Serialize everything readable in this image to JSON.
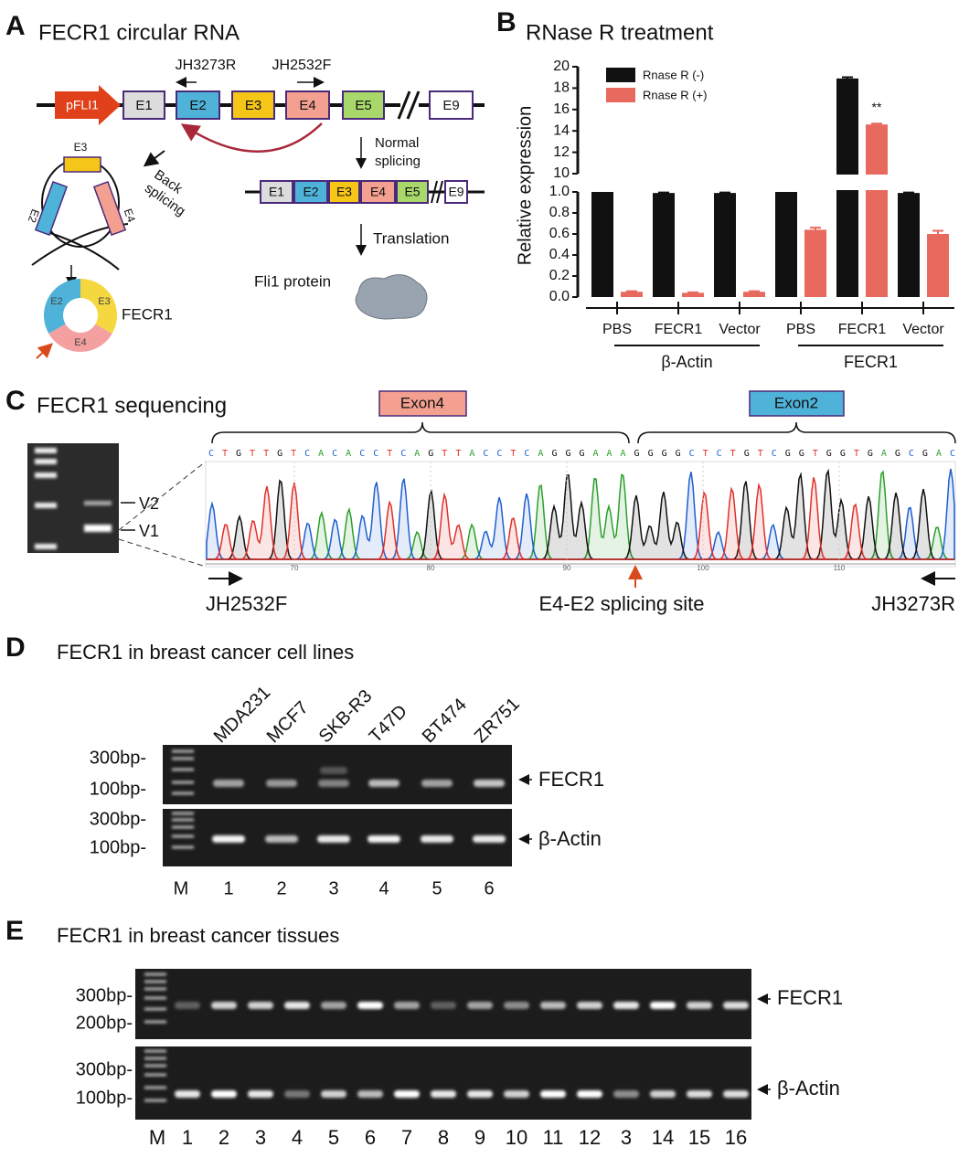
{
  "panel_a": {
    "letter": "A",
    "title": "FECR1 circular RNA",
    "promoter": "pFLI1",
    "exons": [
      "E1",
      "E2",
      "E3",
      "E4",
      "E5",
      "E9"
    ],
    "primers": [
      "JH3273R",
      "JH2532F"
    ],
    "back_splicing": [
      "Back",
      "splicing"
    ],
    "circle_exons": [
      "E3",
      "E2",
      "E4"
    ],
    "ring_exons": [
      "E2",
      "E3",
      "E4"
    ],
    "circ_name": "FECR1",
    "normal_splicing": [
      "Normal",
      "splicing"
    ],
    "mrna_exons": [
      "E1",
      "E2",
      "E3",
      "E4",
      "E5",
      "E9"
    ],
    "translation": "Translation",
    "protein": "Fli1 protein"
  },
  "chart_data": {
    "type": "bar",
    "letter": "B",
    "title": "RNase R treatment",
    "ylabel": "Relative expression",
    "categories": [
      "PBS",
      "FECR1",
      "Vector",
      "PBS",
      "FECR1",
      "Vector"
    ],
    "groups": [
      "β-Actin",
      "FECR1"
    ],
    "series": [
      {
        "name": "Rnase R (-)",
        "color": "#111111",
        "values": [
          1.0,
          0.99,
          0.99,
          1.0,
          18.9,
          0.99
        ],
        "errors": [
          0.005,
          0.005,
          0.005,
          0.005,
          0.12,
          0.005
        ]
      },
      {
        "name": "Rnase R (+)",
        "color": "#e8695e",
        "values": [
          0.05,
          0.04,
          0.05,
          0.64,
          14.6,
          0.6
        ],
        "errors": [
          0.005,
          0.005,
          0.005,
          0.02,
          0.08,
          0.03
        ]
      }
    ],
    "ylim": [
      0,
      1
    ],
    "yticks": [
      {
        "value": 0,
        "label": "0.0"
      },
      0.2,
      0.4,
      0.6,
      0.8,
      {
        "value": 1,
        "label": "1.0"
      }
    ],
    "ylim_upper": [
      10,
      20
    ],
    "yticks_upper": [
      10,
      12,
      14,
      16,
      18,
      20
    ],
    "axis_break": true,
    "annotation": "**",
    "legend": "upper left"
  },
  "panel_c": {
    "letter": "C",
    "title": "FECR1 sequencing",
    "bands": [
      "V2",
      "V1"
    ],
    "exons": [
      "Exon4",
      "Exon2"
    ],
    "sequence": "CTGTTGTCACACCTCAGTTACCTCAGGGAAAGGGGCTCTGTCGGTGGTGAGCGAC",
    "positions": [
      70,
      80,
      90,
      100,
      110
    ],
    "primers": [
      "JH2532F",
      "JH3273R"
    ],
    "site": "E4-E2 splicing site"
  },
  "panel_d": {
    "letter": "D",
    "title": "FECR1 in breast cancer cell lines",
    "cell_lines": [
      "MDA231",
      "MCF7",
      "SKB-R3",
      "T47D",
      "BT474",
      "ZR751"
    ],
    "markers": [
      "300bp-",
      "100bp-",
      "300bp-",
      "100bp-"
    ],
    "targets": [
      "FECR1",
      "β-Actin"
    ],
    "lanes": [
      "M",
      "1",
      "2",
      "3",
      "4",
      "5",
      "6"
    ]
  },
  "panel_e": {
    "letter": "E",
    "title": "FECR1 in breast cancer tissues",
    "markers": [
      "300bp-",
      "200bp-",
      "300bp-",
      "100bp-"
    ],
    "targets": [
      "FECR1",
      "β-Actin"
    ],
    "lanes": [
      "M",
      "1",
      "2",
      "3",
      "4",
      "5",
      "6",
      "7",
      "8",
      "9",
      "10",
      "11",
      "12",
      "3",
      "14",
      "15",
      "16"
    ]
  }
}
